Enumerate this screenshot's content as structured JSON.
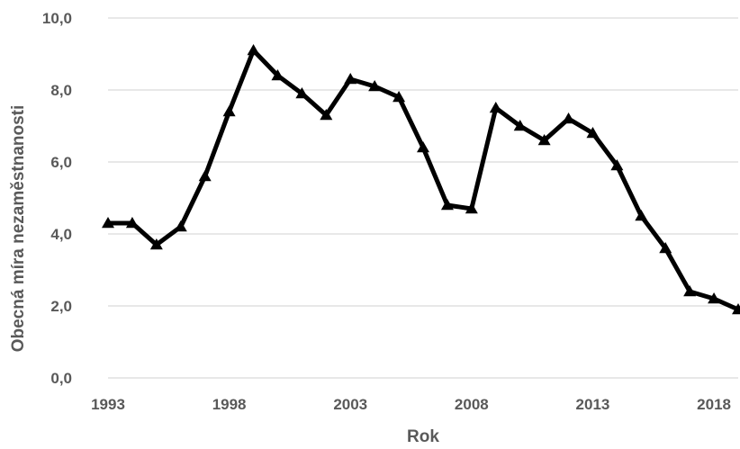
{
  "chart_data": {
    "type": "line",
    "title": "",
    "xlabel": "Rok",
    "ylabel": "Obecná míra nezaměstnanosti",
    "x": [
      1993,
      1994,
      1995,
      1996,
      1997,
      1998,
      1999,
      2000,
      2001,
      2002,
      2003,
      2004,
      2005,
      2006,
      2007,
      2008,
      2009,
      2010,
      2011,
      2012,
      2013,
      2014,
      2015,
      2016,
      2017,
      2018,
      2019
    ],
    "series": [
      {
        "values": [
          4.3,
          4.3,
          3.7,
          4.2,
          5.6,
          7.4,
          9.1,
          8.4,
          7.9,
          7.3,
          8.3,
          8.1,
          7.8,
          6.4,
          4.8,
          4.7,
          7.5,
          7.0,
          6.6,
          7.2,
          6.8,
          5.9,
          4.5,
          3.6,
          2.4,
          2.2,
          1.9
        ],
        "marker": "triangle",
        "color": "#000000"
      }
    ],
    "ylim": [
      0,
      10
    ],
    "yticks": [
      "0,0",
      "2,0",
      "4,0",
      "6,0",
      "8,0",
      "10,0"
    ],
    "xticks": [
      "1993",
      "1998",
      "2003",
      "2008",
      "2013",
      "2018"
    ],
    "grid": "horizontal",
    "legend": "none",
    "colors": {
      "line": "#000000",
      "grid": "#d9d9d9",
      "text": "#595959"
    }
  }
}
